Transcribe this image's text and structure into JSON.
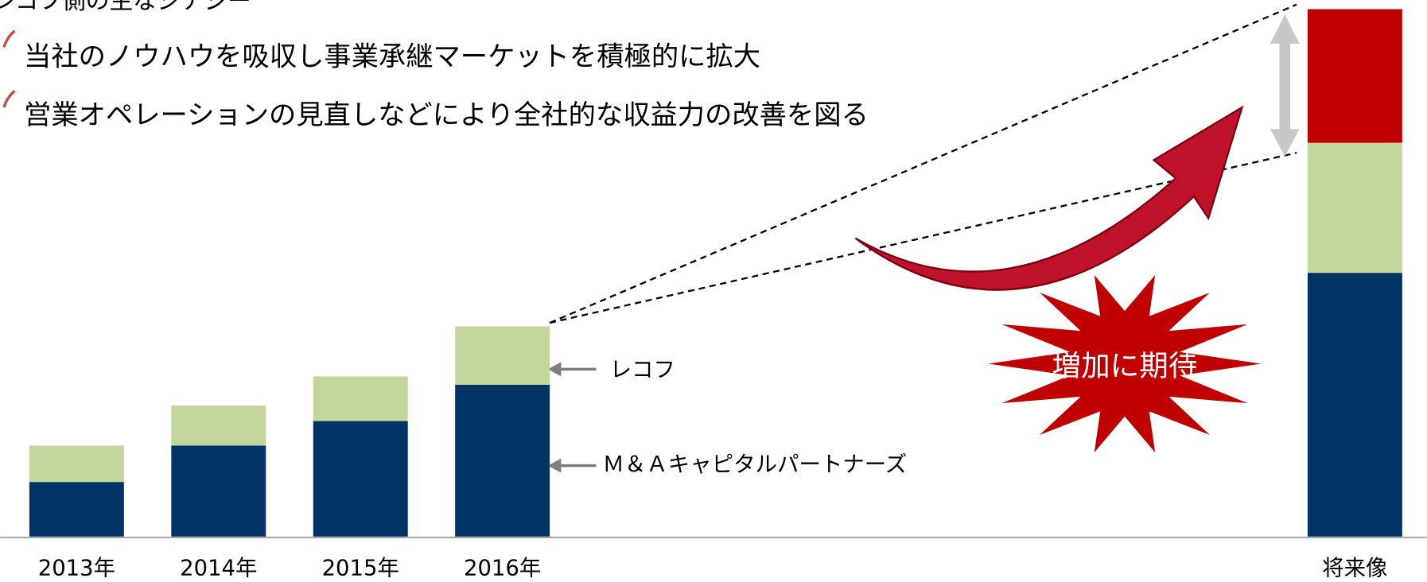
{
  "chart_data": {
    "type": "bar",
    "stacked": true,
    "header": "レコフ側の主なシナジー",
    "bullets": [
      "当社のノウハウを吸収し事業承継マーケットを積極的に拡大",
      "営業オペレーションの見直しなどにより全社的な収益力の改善を図る"
    ],
    "callout": "増加に期待",
    "categories": [
      "2013年",
      "2014年",
      "2015年",
      "2016年",
      "将来像"
    ],
    "series": [
      {
        "name": "Ｍ＆Ａキャピタルパートナーズ",
        "color": "#003366",
        "values": [
          60,
          100,
          127,
          167,
          290
        ]
      },
      {
        "name": "レコフ",
        "color": "#c3d69b",
        "values": [
          40,
          44,
          49,
          64,
          143
        ]
      },
      {
        "color": "#c00000",
        "values": [
          null,
          null,
          null,
          null,
          147
        ]
      }
    ]
  }
}
